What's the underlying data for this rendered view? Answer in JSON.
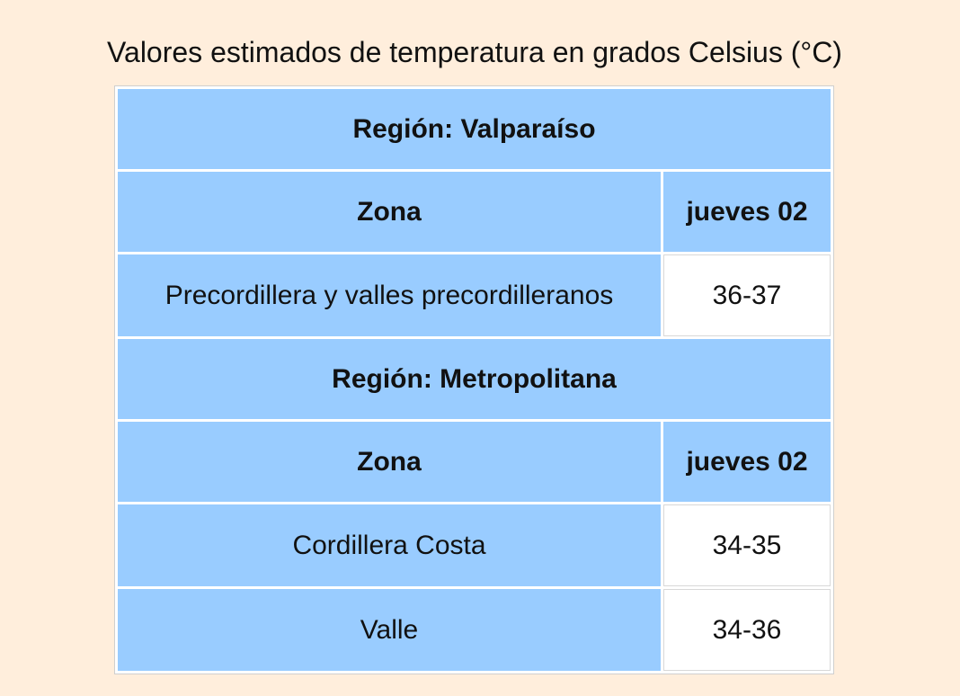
{
  "title": "Valores estimados de temperatura en grados Celsius (°C)",
  "table": {
    "sections": [
      {
        "region": "Región: Valparaíso",
        "header": [
          "Zona",
          "jueves 02"
        ],
        "rows": [
          [
            "Precordillera y valles precordilleranos",
            "36-37"
          ]
        ]
      },
      {
        "region": "Región: Metropolitana",
        "header": [
          "Zona",
          "jueves 02"
        ],
        "rows": [
          [
            "Cordillera Costa",
            "34-35"
          ],
          [
            "Valle",
            "34-36"
          ]
        ]
      }
    ]
  }
}
